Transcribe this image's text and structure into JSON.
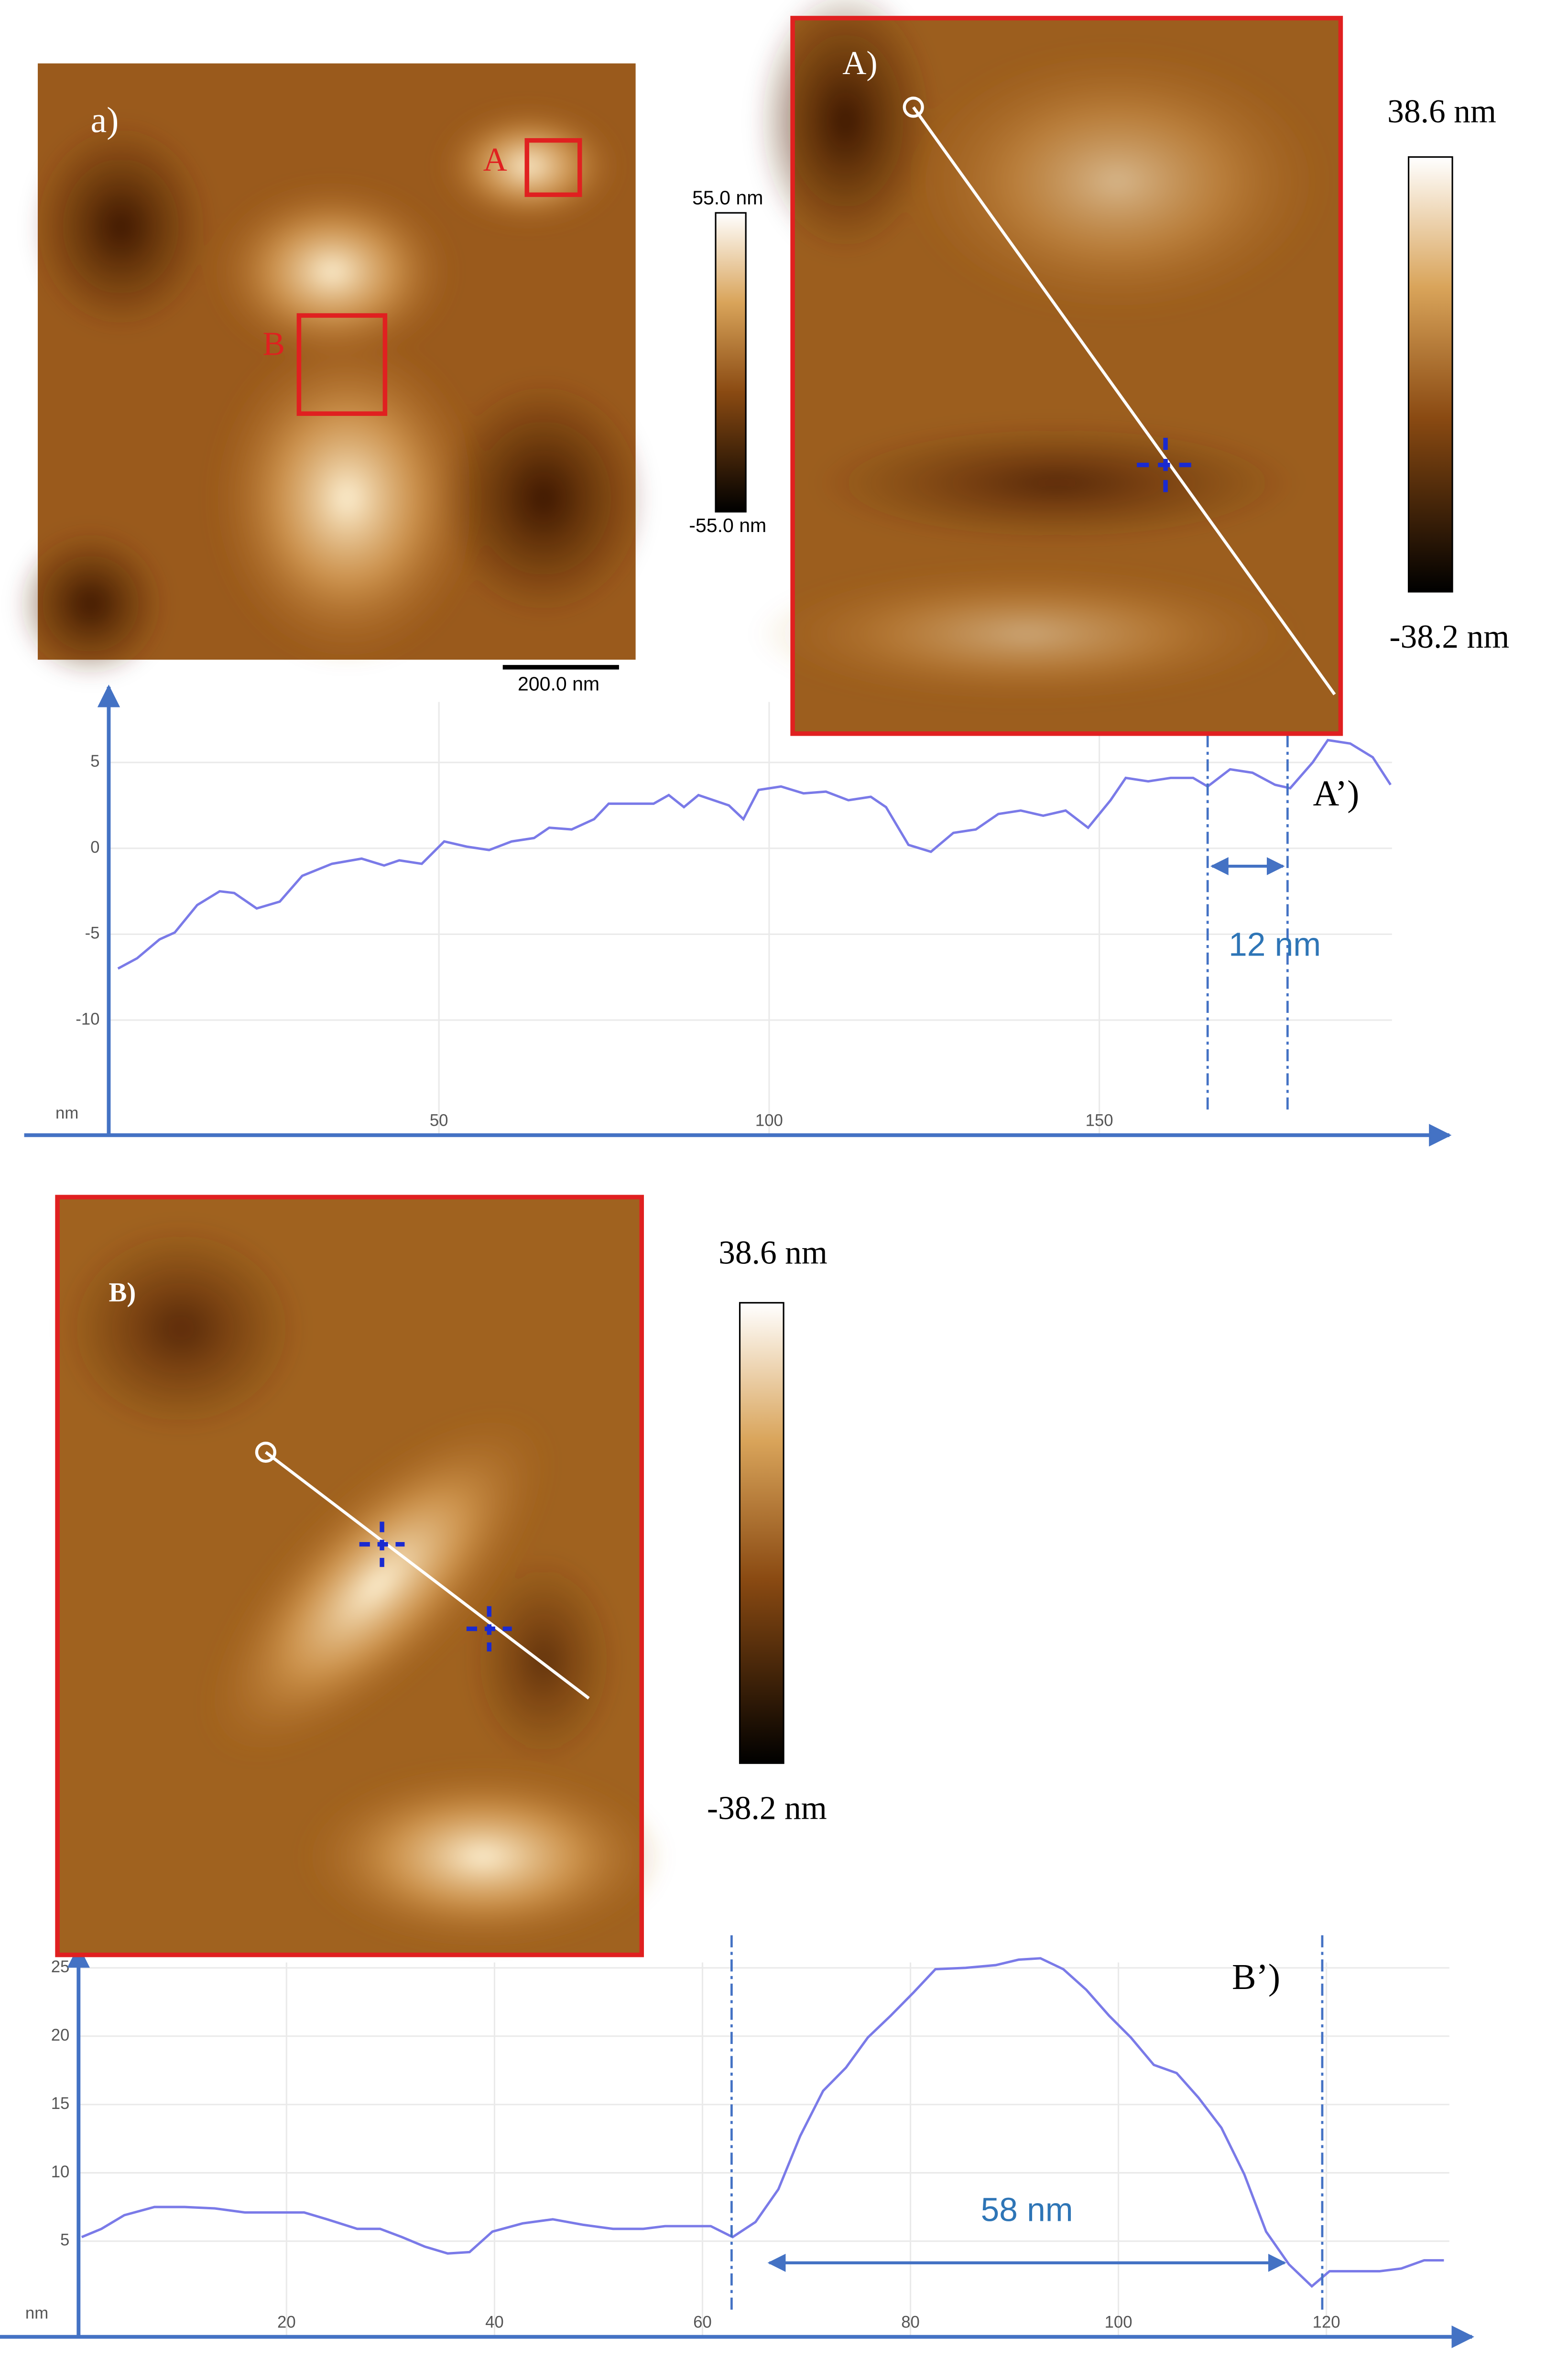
{
  "images": {
    "overview": {
      "label": "a)",
      "regions": [
        "A",
        "B"
      ],
      "colorbar_max": "55.0 nm",
      "colorbar_min": "-55.0 nm",
      "scale_bar": "200.0 nm"
    },
    "zoom_A": {
      "label": "A)",
      "colorbar_max": "38.6 nm",
      "colorbar_min": "-38.2 nm"
    },
    "zoom_B": {
      "label": "B)",
      "colorbar_max": "38.6 nm",
      "colorbar_min": "-38.2 nm"
    }
  },
  "chart_data": [
    {
      "type": "line",
      "label": "A’)",
      "ylabel": "nm",
      "grid": true,
      "x": [
        1.4,
        4.3,
        7.7,
        10,
        13.4,
        16.8,
        19,
        22.4,
        25.9,
        29.3,
        33.8,
        38.3,
        41.7,
        44,
        47.4,
        50.8,
        54.2,
        57.6,
        61,
        64.4,
        66.7,
        70.1,
        73.5,
        75.7,
        79.1,
        82.5,
        84.8,
        87.1,
        89.3,
        93.9,
        96.1,
        98.4,
        101.8,
        105.2,
        108.6,
        112,
        115.4,
        117.7,
        121.1,
        124.5,
        127.9,
        131.3,
        134.7,
        138.1,
        141.5,
        144.9,
        148.3,
        151.7,
        154,
        157.4,
        160.8,
        164.2,
        166.4,
        169.8,
        173.2,
        176.6,
        178.9,
        182.3,
        184.6,
        188,
        191.4,
        194.1
      ],
      "series": [
        {
          "name": null,
          "color": "#7a7ae8",
          "values": [
            -7.0,
            -6.4,
            -5.3,
            -4.9,
            -3.3,
            -2.5,
            -2.6,
            -3.5,
            -3.1,
            -1.6,
            -0.9,
            -0.6,
            -1.0,
            -0.7,
            -0.9,
            0.4,
            0.1,
            -0.1,
            0.4,
            0.6,
            1.2,
            1.1,
            1.7,
            2.6,
            2.6,
            2.6,
            3.1,
            2.4,
            3.1,
            2.5,
            1.7,
            3.4,
            3.6,
            3.2,
            3.3,
            2.8,
            3.0,
            2.4,
            0.2,
            -0.2,
            0.9,
            1.1,
            2.0,
            2.2,
            1.9,
            2.2,
            1.2,
            2.8,
            4.1,
            3.9,
            4.1,
            4.1,
            3.6,
            4.6,
            4.4,
            3.7,
            3.5,
            5.0,
            6.3,
            6.1,
            5.3,
            3.7
          ]
        }
      ],
      "xlim": [
        0,
        203
      ],
      "ylim": [
        -16.7,
        9.4
      ],
      "xticks": [
        50,
        100,
        150
      ],
      "yticks": [
        -10,
        -5,
        0,
        5
      ],
      "annotation": {
        "text": "12 nm",
        "from": 166.4,
        "to": 178.5
      }
    },
    {
      "type": "line",
      "label": "B’)",
      "ylabel": "nm",
      "grid": true,
      "x": [
        0.3,
        2.2,
        4.4,
        7.3,
        10.2,
        13.1,
        16,
        18.8,
        21.7,
        23.9,
        26.8,
        29,
        31.1,
        33.3,
        35.5,
        37.6,
        39.8,
        42.7,
        45.6,
        48.5,
        51.4,
        54.3,
        56.4,
        58.6,
        60.8,
        62.9,
        65.1,
        67.3,
        69.4,
        71.6,
        73.8,
        75.9,
        78.1,
        80.3,
        82.4,
        85.3,
        88.2,
        90.4,
        92.5,
        94.7,
        96.9,
        99.1,
        101.2,
        103.4,
        105.6,
        107.7,
        109.9,
        112.1,
        114.2,
        116.4,
        118.6,
        120.3,
        122.2,
        125.1,
        127.2,
        129.4,
        131.3
      ],
      "series": [
        {
          "name": null,
          "color": "#7a7ae8",
          "values": [
            5.3,
            5.9,
            6.9,
            7.5,
            7.5,
            7.4,
            7.1,
            7.1,
            7.1,
            6.6,
            5.9,
            5.9,
            5.3,
            4.6,
            4.1,
            4.2,
            5.7,
            6.3,
            6.6,
            6.2,
            5.9,
            5.9,
            6.1,
            6.1,
            6.1,
            5.3,
            6.4,
            8.8,
            12.7,
            16.0,
            17.7,
            19.9,
            21.5,
            23.2,
            24.9,
            25.0,
            25.2,
            25.6,
            25.7,
            24.9,
            23.4,
            21.5,
            19.9,
            17.9,
            17.3,
            15.5,
            13.3,
            9.9,
            5.7,
            3.3,
            1.7,
            2.8,
            2.8,
            2.8,
            3.0,
            3.6,
            3.6
          ]
        }
      ],
      "xlim": [
        0,
        134
      ],
      "ylim": [
        -2,
        26.5
      ],
      "xticks": [
        20,
        40,
        60,
        80,
        100,
        120
      ],
      "yticks": [
        5,
        10,
        15,
        20,
        25
      ],
      "annotation": {
        "text": "58 nm",
        "from": 62.8,
        "to": 119.6
      }
    }
  ]
}
